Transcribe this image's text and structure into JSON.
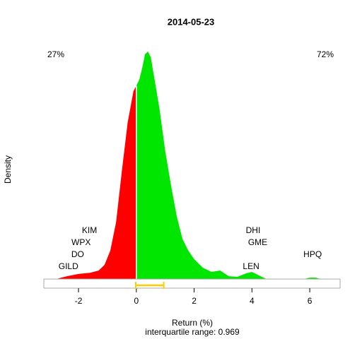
{
  "chart_data": {
    "type": "density",
    "title": "2014-05-23",
    "x_label": "Return (%)",
    "y_label": "Density",
    "subtitle": "interquartile range: 0.969",
    "xlim": [
      -3.2,
      7.05
    ],
    "ylim": [
      -0.032,
      0.832
    ],
    "xticks": [
      -2,
      0,
      2,
      4,
      6
    ],
    "series": [
      {
        "color": "#ff0000",
        "x": [
          -2.7,
          -2.4,
          -2.0,
          -1.6,
          -1.3,
          -1.1,
          -0.9,
          -0.7,
          -0.5,
          -0.3,
          -0.1,
          0
        ],
        "values": [
          0.002,
          0.01,
          0.018,
          0.022,
          0.03,
          0.05,
          0.1,
          0.2,
          0.38,
          0.55,
          0.66,
          0.68
        ]
      },
      {
        "color": "#00e600",
        "x": [
          0,
          0.1,
          0.2,
          0.3,
          0.4,
          0.5,
          0.6,
          0.8,
          1.0,
          1.2,
          1.4,
          1.6,
          1.8,
          2.0,
          2.3,
          2.6,
          2.9,
          3.2,
          3.5,
          3.8,
          4.0,
          4.3,
          4.5,
          5.8,
          6.0,
          6.2,
          6.4
        ],
        "values": [
          0.68,
          0.7,
          0.74,
          0.79,
          0.8,
          0.78,
          0.72,
          0.6,
          0.45,
          0.33,
          0.22,
          0.14,
          0.1,
          0.07,
          0.04,
          0.025,
          0.03,
          0.01,
          0.008,
          0.02,
          0.025,
          0.01,
          0,
          0,
          0.005,
          0.005,
          0
        ]
      }
    ],
    "percentages": [
      {
        "text": "27%",
        "color": "#ff0000"
      },
      {
        "text": "72%",
        "color": "#00a000"
      }
    ],
    "annotations": [
      {
        "text": "GILD",
        "x": -2.35
      },
      {
        "text": "DO",
        "x": -2.03
      },
      {
        "text": "WPX",
        "x": -1.91
      },
      {
        "text": "KIM",
        "x": -1.62
      },
      {
        "text": "LEN",
        "x": 3.97
      },
      {
        "text": "DHI",
        "x": 4.04
      },
      {
        "text": "GME",
        "x": 4.2
      },
      {
        "text": "HPQ",
        "x": 6.1
      }
    ],
    "quartiles": [
      -0.02,
      0.949
    ],
    "quartile_color": "#ffcc00"
  }
}
